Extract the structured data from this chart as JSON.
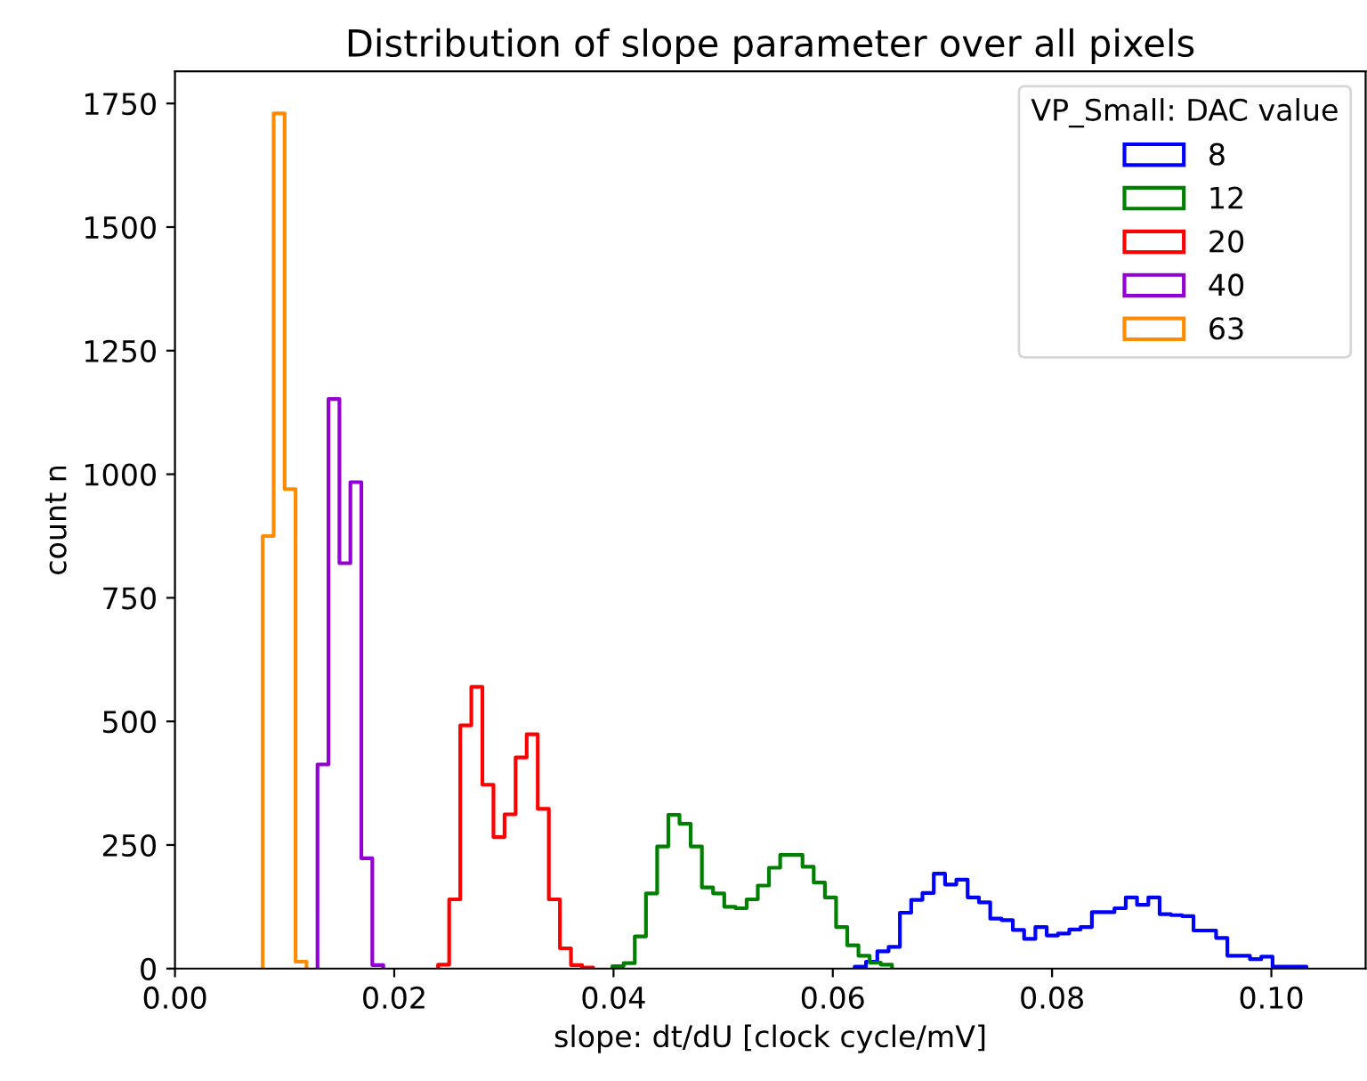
{
  "chart_data": {
    "type": "step",
    "title": "Distribution of slope parameter over all pixels",
    "xlabel": "slope: dt/dU [clock cycle/mV]",
    "ylabel": "count n",
    "legend_title": "VP_Small: DAC value",
    "legend": "top right",
    "grid": false,
    "xlim": [
      0,
      0.1086
    ],
    "ylim": [
      0,
      1815
    ],
    "xticks": [
      {
        "value": 0,
        "label": "0.00"
      },
      {
        "value": 0.02,
        "label": "0.02"
      },
      {
        "value": 0.04,
        "label": "0.04"
      },
      {
        "value": 0.06,
        "label": "0.06"
      },
      {
        "value": 0.08,
        "label": "0.08"
      },
      {
        "value": 0.1,
        "label": "0.10"
      }
    ],
    "yticks": [
      0,
      250,
      500,
      750,
      1000,
      1250,
      1500,
      1750
    ],
    "series": [
      {
        "name": "8",
        "color": "#0000ff",
        "x": [
          0.062,
          0.062,
          0.06303,
          0.06406,
          0.06509,
          0.06612,
          0.06715,
          0.06818,
          0.06921,
          0.07024,
          0.07127,
          0.0723,
          0.07333,
          0.07436,
          0.07539,
          0.07642,
          0.07745,
          0.07848,
          0.07951,
          0.08054,
          0.08157,
          0.0826,
          0.08363,
          0.08466,
          0.08569,
          0.08672,
          0.08775,
          0.08878,
          0.08981,
          0.09084,
          0.09187,
          0.0929,
          0.09393,
          0.09496,
          0.09599,
          0.09702,
          0.09805,
          0.09908,
          0.10011,
          0.10114,
          0.10217,
          0.1032
        ],
        "values": [
          0,
          4,
          14,
          35,
          44,
          113,
          139,
          153,
          192,
          170,
          180,
          144,
          134,
          101,
          98,
          78,
          60,
          84,
          67,
          71,
          79,
          84,
          114,
          114,
          122,
          144,
          129,
          144,
          110,
          108,
          106,
          77,
          77,
          62,
          26,
          26,
          19,
          24,
          4,
          4,
          4,
          0
        ]
      },
      {
        "name": "12",
        "color": "#008000",
        "x": [
          0.0399,
          0.0399,
          0.04092,
          0.04194,
          0.04296,
          0.04398,
          0.045,
          0.04602,
          0.04704,
          0.04806,
          0.04908,
          0.0501,
          0.05112,
          0.05214,
          0.05316,
          0.05418,
          0.0552,
          0.05622,
          0.05724,
          0.05826,
          0.05928,
          0.0603,
          0.06132,
          0.06234,
          0.06336,
          0.06438,
          0.0654
        ],
        "values": [
          0,
          5,
          11,
          65,
          152,
          247,
          311,
          293,
          247,
          164,
          152,
          125,
          122,
          140,
          168,
          204,
          230,
          230,
          206,
          174,
          144,
          84,
          47,
          26,
          12,
          8,
          0
        ]
      },
      {
        "name": "20",
        "color": "#ff0000",
        "x": [
          0.024,
          0.024,
          0.02501,
          0.02602,
          0.02703,
          0.02804,
          0.02905,
          0.03006,
          0.03107,
          0.03208,
          0.03309,
          0.0341,
          0.03511,
          0.03612,
          0.03713,
          0.03814
        ],
        "values": [
          0,
          8,
          140,
          492,
          570,
          372,
          266,
          312,
          427,
          474,
          323,
          140,
          41,
          7,
          2,
          0
        ]
      },
      {
        "name": "40",
        "color": "#9400d3",
        "x": [
          0.013,
          0.013,
          0.014,
          0.015,
          0.016,
          0.017,
          0.018,
          0.019
        ],
        "values": [
          0,
          413,
          1152,
          820,
          984,
          223,
          7,
          0
        ]
      },
      {
        "name": "63",
        "color": "#ff8c00",
        "x": [
          0.008,
          0.008,
          0.009,
          0.01,
          0.011,
          0.012
        ],
        "values": [
          0,
          875,
          1730,
          970,
          14,
          0
        ]
      }
    ]
  }
}
